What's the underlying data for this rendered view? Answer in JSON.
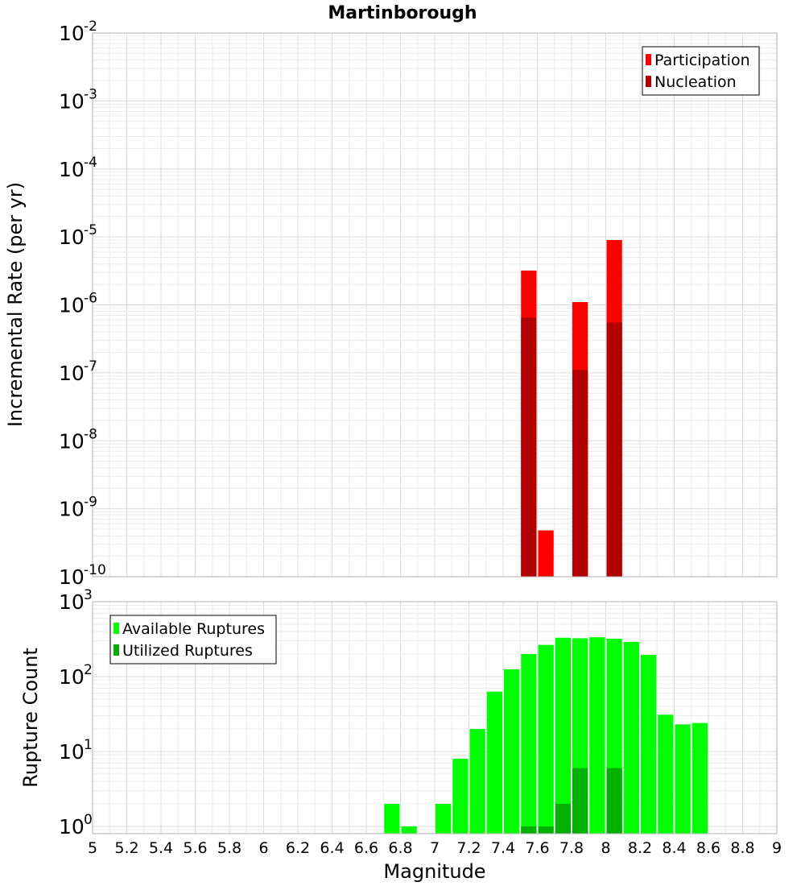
{
  "chart_data": [
    {
      "type": "bar",
      "title": "Martinborough",
      "ylabel": "Incremental Rate (per yr)",
      "xlabel": "",
      "y_scale": "log",
      "ylim": [
        1e-10,
        0.01
      ],
      "xlim": [
        5,
        9
      ],
      "y_ticks": [
        {
          "base": "10",
          "exp": "-2"
        },
        {
          "base": "10",
          "exp": "-3"
        },
        {
          "base": "10",
          "exp": "-4"
        },
        {
          "base": "10",
          "exp": "-5"
        },
        {
          "base": "10",
          "exp": "-6"
        },
        {
          "base": "10",
          "exp": "-7"
        },
        {
          "base": "10",
          "exp": "-8"
        },
        {
          "base": "10",
          "exp": "-9"
        },
        {
          "base": "10",
          "exp": "-10"
        }
      ],
      "grid": true,
      "legend_position": "top-right",
      "series": [
        {
          "name": "Participation",
          "color": "#ff0000",
          "points": [
            {
              "x": 7.55,
              "y": 3.2e-06
            },
            {
              "x": 7.65,
              "y": 4.8e-10
            },
            {
              "x": 7.85,
              "y": 1.1e-06
            },
            {
              "x": 8.05,
              "y": 9e-06
            }
          ]
        },
        {
          "name": "Nucleation",
          "color": "#b00000",
          "points": [
            {
              "x": 7.55,
              "y": 6.5e-07
            },
            {
              "x": 7.85,
              "y": 1.1e-07
            },
            {
              "x": 8.05,
              "y": 5.5e-07
            }
          ]
        }
      ]
    },
    {
      "type": "bar",
      "title": "",
      "ylabel": "Rupture Count",
      "xlabel": "Magnitude",
      "y_scale": "log",
      "ylim": [
        0.8,
        1000
      ],
      "xlim": [
        5,
        9
      ],
      "x_tick_labels": [
        "5",
        "5.2",
        "5.4",
        "5.6",
        "5.8",
        "6",
        "6.2",
        "6.4",
        "6.6",
        "6.8",
        "7",
        "7.2",
        "7.4",
        "7.6",
        "7.8",
        "8",
        "8.2",
        "8.4",
        "8.6",
        "8.8",
        "9"
      ],
      "y_ticks": [
        {
          "base": "10",
          "exp": "3"
        },
        {
          "base": "10",
          "exp": "2"
        },
        {
          "base": "10",
          "exp": "1"
        },
        {
          "base": "10",
          "exp": "0"
        }
      ],
      "grid": true,
      "legend_position": "top-left",
      "series": [
        {
          "name": "Available Ruptures",
          "color": "#00ff00",
          "points": [
            {
              "x": 6.75,
              "y": 2
            },
            {
              "x": 6.85,
              "y": 1
            },
            {
              "x": 7.05,
              "y": 2
            },
            {
              "x": 7.15,
              "y": 8
            },
            {
              "x": 7.25,
              "y": 20
            },
            {
              "x": 7.35,
              "y": 63
            },
            {
              "x": 7.45,
              "y": 125
            },
            {
              "x": 7.55,
              "y": 200
            },
            {
              "x": 7.65,
              "y": 265
            },
            {
              "x": 7.75,
              "y": 330
            },
            {
              "x": 7.85,
              "y": 325
            },
            {
              "x": 7.95,
              "y": 335
            },
            {
              "x": 8.05,
              "y": 320
            },
            {
              "x": 8.15,
              "y": 290
            },
            {
              "x": 8.25,
              "y": 195
            },
            {
              "x": 8.35,
              "y": 31
            },
            {
              "x": 8.45,
              "y": 23
            },
            {
              "x": 8.55,
              "y": 24
            }
          ]
        },
        {
          "name": "Utilized Ruptures",
          "color": "#00b000",
          "points": [
            {
              "x": 7.55,
              "y": 1
            },
            {
              "x": 7.65,
              "y": 1
            },
            {
              "x": 7.75,
              "y": 2
            },
            {
              "x": 7.85,
              "y": 6
            },
            {
              "x": 8.05,
              "y": 6
            }
          ]
        }
      ]
    }
  ]
}
